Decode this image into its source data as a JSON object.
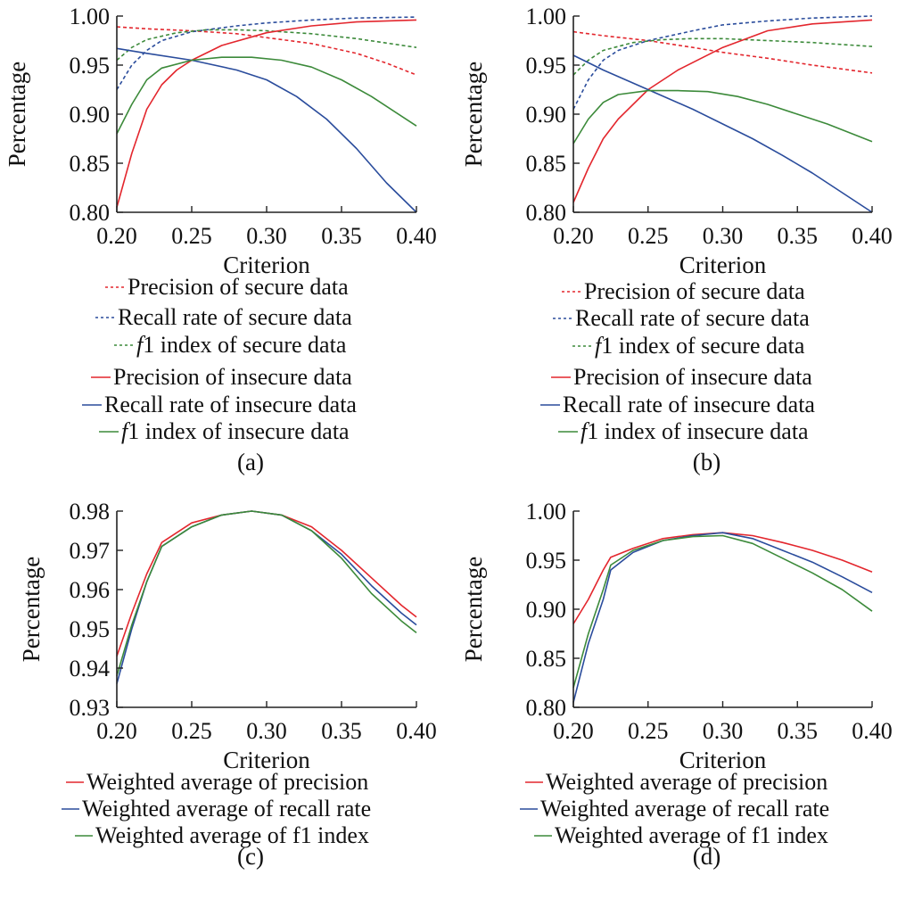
{
  "colors": {
    "red": "#e3262d",
    "blue": "#2a4c9c",
    "green": "#3c8a3a",
    "axis": "#222222"
  },
  "chart_data": [
    {
      "id": "a",
      "type": "line",
      "panel_label": "(a)",
      "xlabel": "Criterion",
      "ylabel": "Percentage",
      "xlim": [
        0.2,
        0.4
      ],
      "ylim": [
        0.8,
        1.0
      ],
      "xticks": [
        "0.20",
        "0.25",
        "0.30",
        "0.35",
        "0.40"
      ],
      "yticks": [
        "0.80",
        "0.85",
        "0.90",
        "0.95",
        "1.00"
      ],
      "legend_position": "below",
      "series": [
        {
          "name": "Precision of secure data",
          "color": "red",
          "dash": true,
          "x": [
            0.2,
            0.22,
            0.25,
            0.28,
            0.3,
            0.33,
            0.36,
            0.38,
            0.4
          ],
          "y": [
            0.989,
            0.987,
            0.985,
            0.982,
            0.978,
            0.972,
            0.962,
            0.952,
            0.94
          ]
        },
        {
          "name": "Recall rate of secure data",
          "color": "blue",
          "dash": true,
          "x": [
            0.2,
            0.21,
            0.22,
            0.23,
            0.25,
            0.28,
            0.3,
            0.33,
            0.36,
            0.4
          ],
          "y": [
            0.925,
            0.95,
            0.965,
            0.975,
            0.984,
            0.99,
            0.993,
            0.996,
            0.998,
            0.999
          ]
        },
        {
          "name": "f1 index of secure data",
          "color": "green",
          "dash": true,
          "x": [
            0.2,
            0.21,
            0.22,
            0.24,
            0.26,
            0.28,
            0.3,
            0.33,
            0.36,
            0.4
          ],
          "y": [
            0.955,
            0.968,
            0.976,
            0.983,
            0.986,
            0.986,
            0.985,
            0.982,
            0.977,
            0.968
          ]
        },
        {
          "name": "Precision of insecure data",
          "color": "red",
          "dash": false,
          "x": [
            0.2,
            0.21,
            0.22,
            0.23,
            0.24,
            0.25,
            0.27,
            0.3,
            0.33,
            0.36,
            0.4
          ],
          "y": [
            0.805,
            0.86,
            0.905,
            0.93,
            0.945,
            0.955,
            0.97,
            0.983,
            0.99,
            0.994,
            0.996
          ]
        },
        {
          "name": "Recall rate of insecure data",
          "color": "blue",
          "dash": false,
          "x": [
            0.2,
            0.22,
            0.25,
            0.28,
            0.3,
            0.32,
            0.34,
            0.36,
            0.38,
            0.4
          ],
          "y": [
            0.967,
            0.962,
            0.955,
            0.945,
            0.935,
            0.918,
            0.895,
            0.865,
            0.83,
            0.8
          ]
        },
        {
          "name": "f1 index of insecure data",
          "color": "green",
          "dash": false,
          "x": [
            0.2,
            0.21,
            0.22,
            0.23,
            0.25,
            0.27,
            0.29,
            0.31,
            0.33,
            0.35,
            0.37,
            0.4
          ],
          "y": [
            0.88,
            0.91,
            0.935,
            0.947,
            0.955,
            0.958,
            0.958,
            0.955,
            0.948,
            0.935,
            0.918,
            0.888
          ]
        }
      ]
    },
    {
      "id": "b",
      "type": "line",
      "panel_label": "(b)",
      "xlabel": "Criterion",
      "ylabel": "Percentage",
      "xlim": [
        0.2,
        0.4
      ],
      "ylim": [
        0.8,
        1.0
      ],
      "xticks": [
        "0.20",
        "0.25",
        "0.30",
        "0.35",
        "0.40"
      ],
      "yticks": [
        "0.80",
        "0.85",
        "0.90",
        "0.95",
        "1.00"
      ],
      "legend_position": "below",
      "series": [
        {
          "name": "Precision of secure data",
          "color": "red",
          "dash": true,
          "x": [
            0.2,
            0.22,
            0.25,
            0.28,
            0.3,
            0.33,
            0.36,
            0.4
          ],
          "y": [
            0.984,
            0.98,
            0.975,
            0.968,
            0.963,
            0.957,
            0.95,
            0.942
          ]
        },
        {
          "name": "Recall rate of secure data",
          "color": "blue",
          "dash": true,
          "x": [
            0.2,
            0.21,
            0.22,
            0.23,
            0.25,
            0.28,
            0.3,
            0.33,
            0.36,
            0.4
          ],
          "y": [
            0.905,
            0.935,
            0.955,
            0.965,
            0.975,
            0.985,
            0.991,
            0.995,
            0.998,
            1.0
          ]
        },
        {
          "name": "f1 index of secure data",
          "color": "green",
          "dash": true,
          "x": [
            0.2,
            0.21,
            0.22,
            0.24,
            0.26,
            0.28,
            0.3,
            0.33,
            0.36,
            0.4
          ],
          "y": [
            0.94,
            0.955,
            0.965,
            0.973,
            0.976,
            0.977,
            0.977,
            0.975,
            0.973,
            0.969
          ]
        },
        {
          "name": "Precision of insecure data",
          "color": "red",
          "dash": false,
          "x": [
            0.2,
            0.21,
            0.22,
            0.23,
            0.25,
            0.27,
            0.3,
            0.33,
            0.36,
            0.4
          ],
          "y": [
            0.81,
            0.845,
            0.875,
            0.895,
            0.925,
            0.945,
            0.968,
            0.985,
            0.992,
            0.996
          ]
        },
        {
          "name": "Recall rate of insecure data",
          "color": "blue",
          "dash": false,
          "x": [
            0.2,
            0.22,
            0.25,
            0.28,
            0.3,
            0.32,
            0.34,
            0.36,
            0.38,
            0.4
          ],
          "y": [
            0.96,
            0.945,
            0.925,
            0.905,
            0.89,
            0.875,
            0.858,
            0.84,
            0.82,
            0.8
          ]
        },
        {
          "name": "f1 index of insecure data",
          "color": "green",
          "dash": false,
          "x": [
            0.2,
            0.21,
            0.22,
            0.23,
            0.25,
            0.27,
            0.29,
            0.31,
            0.33,
            0.35,
            0.37,
            0.4
          ],
          "y": [
            0.87,
            0.895,
            0.912,
            0.92,
            0.924,
            0.924,
            0.923,
            0.918,
            0.91,
            0.9,
            0.89,
            0.872
          ]
        }
      ]
    },
    {
      "id": "c",
      "type": "line",
      "panel_label": "(c)",
      "xlabel": "Criterion",
      "ylabel": "Percentage",
      "xlim": [
        0.2,
        0.4
      ],
      "ylim": [
        0.93,
        0.98
      ],
      "xticks": [
        "0.20",
        "0.25",
        "0.30",
        "0.35",
        "0.40"
      ],
      "yticks": [
        "0.93",
        "0.94",
        "0.95",
        "0.96",
        "0.97",
        "0.98"
      ],
      "legend_position": "below",
      "series": [
        {
          "name": "Weighted average of precision",
          "color": "red",
          "dash": false,
          "x": [
            0.2,
            0.21,
            0.22,
            0.23,
            0.25,
            0.27,
            0.29,
            0.31,
            0.33,
            0.35,
            0.37,
            0.39,
            0.4
          ],
          "y": [
            0.943,
            0.954,
            0.964,
            0.972,
            0.977,
            0.979,
            0.98,
            0.979,
            0.976,
            0.97,
            0.963,
            0.956,
            0.953
          ]
        },
        {
          "name": "Weighted average of recall rate",
          "color": "blue",
          "dash": false,
          "x": [
            0.2,
            0.21,
            0.22,
            0.23,
            0.25,
            0.27,
            0.29,
            0.31,
            0.33,
            0.35,
            0.37,
            0.39,
            0.4
          ],
          "y": [
            0.936,
            0.95,
            0.962,
            0.971,
            0.976,
            0.979,
            0.98,
            0.979,
            0.975,
            0.969,
            0.961,
            0.954,
            0.951
          ]
        },
        {
          "name": "Weighted average of f1 index",
          "color": "green",
          "dash": false,
          "x": [
            0.2,
            0.21,
            0.22,
            0.23,
            0.25,
            0.27,
            0.29,
            0.31,
            0.33,
            0.35,
            0.37,
            0.39,
            0.4
          ],
          "y": [
            0.938,
            0.951,
            0.962,
            0.971,
            0.976,
            0.979,
            0.98,
            0.979,
            0.975,
            0.968,
            0.959,
            0.952,
            0.949
          ]
        }
      ]
    },
    {
      "id": "d",
      "type": "line",
      "panel_label": "(d)",
      "xlabel": "Criterion",
      "ylabel": "Percentage",
      "xlim": [
        0.2,
        0.4
      ],
      "ylim": [
        0.8,
        1.0
      ],
      "xticks": [
        "0.20",
        "0.25",
        "0.30",
        "0.35",
        "0.40"
      ],
      "yticks": [
        "0.80",
        "0.85",
        "0.90",
        "0.95",
        "1.00"
      ],
      "legend_position": "below",
      "series": [
        {
          "name": "Weighted average of precision",
          "color": "red",
          "dash": false,
          "x": [
            0.2,
            0.21,
            0.22,
            0.225,
            0.24,
            0.26,
            0.28,
            0.3,
            0.32,
            0.34,
            0.36,
            0.38,
            0.4
          ],
          "y": [
            0.885,
            0.91,
            0.94,
            0.953,
            0.962,
            0.972,
            0.976,
            0.978,
            0.975,
            0.968,
            0.96,
            0.95,
            0.938
          ]
        },
        {
          "name": "Weighted average of recall rate",
          "color": "blue",
          "dash": false,
          "x": [
            0.2,
            0.21,
            0.22,
            0.225,
            0.24,
            0.26,
            0.28,
            0.3,
            0.32,
            0.34,
            0.36,
            0.38,
            0.4
          ],
          "y": [
            0.805,
            0.865,
            0.91,
            0.94,
            0.958,
            0.97,
            0.975,
            0.978,
            0.972,
            0.96,
            0.948,
            0.933,
            0.917
          ]
        },
        {
          "name": "Weighted average of f1 index",
          "color": "green",
          "dash": false,
          "x": [
            0.2,
            0.21,
            0.22,
            0.225,
            0.24,
            0.26,
            0.28,
            0.3,
            0.32,
            0.34,
            0.36,
            0.38,
            0.4
          ],
          "y": [
            0.82,
            0.875,
            0.92,
            0.945,
            0.96,
            0.97,
            0.974,
            0.975,
            0.967,
            0.952,
            0.937,
            0.92,
            0.898
          ]
        }
      ]
    }
  ]
}
